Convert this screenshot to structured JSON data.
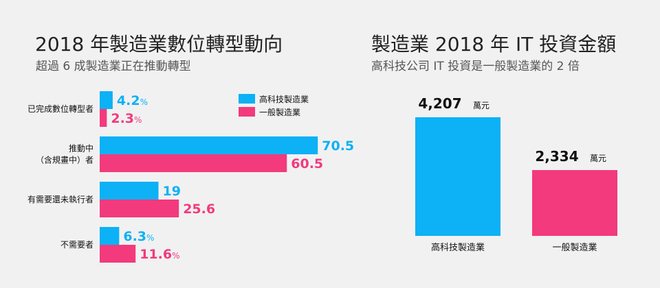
{
  "left": {
    "title": "2018 年製造業數位轉型動向",
    "subtitle": "超過 6 成製造業正在推動轉型"
  },
  "right": {
    "title": "製造業 2018 年 IT 投資金額",
    "subtitle": "高科技公司 IT 投資是一般製造業的 2 倍"
  },
  "colors": {
    "hightech": "#0db1f5",
    "general": "#f23a7d",
    "background": "#f1f1f1"
  },
  "chart_data": [
    {
      "type": "bar",
      "orientation": "horizontal",
      "categories": [
        [
          "已完成數位轉型者"
        ],
        [
          "推動中",
          "（含規畫中）者"
        ],
        [
          "有需要還未執行者"
        ],
        [
          "不需要者"
        ]
      ],
      "series": [
        {
          "name": "高科技製造業",
          "values": [
            4.2,
            70.5,
            19,
            6.3
          ],
          "labels": [
            "4.2",
            "70.5",
            "19",
            "6.3"
          ],
          "suffix": [
            "%",
            "",
            "",
            "%"
          ]
        },
        {
          "name": "一般製造業",
          "values": [
            2.3,
            60.5,
            25.6,
            11.6
          ],
          "labels": [
            "2.3",
            "60.5",
            "25.6",
            "11.6"
          ],
          "suffix": [
            "%",
            "",
            "",
            "%"
          ]
        }
      ],
      "legend": "top-right",
      "grid": false
    },
    {
      "type": "bar",
      "orientation": "vertical",
      "categories": [
        "高科技製造業",
        "一般製造業"
      ],
      "values": [
        4207,
        2334
      ],
      "labels": [
        "4,207",
        "2,334"
      ],
      "unit": "萬元",
      "grid": false
    }
  ]
}
